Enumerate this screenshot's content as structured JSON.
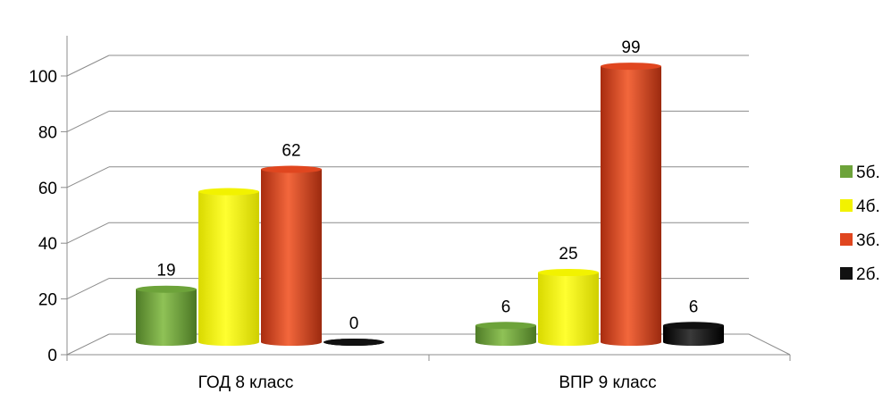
{
  "chart_data": {
    "type": "bar",
    "categories": [
      "ГОД 8 класс",
      "ВПР 9 класс"
    ],
    "series": [
      {
        "name": "5б.",
        "values": [
          19,
          6
        ],
        "labels": [
          "19",
          "6"
        ],
        "color": "#6da33a"
      },
      {
        "name": "4б.",
        "values": [
          54,
          25
        ],
        "labels": [
          "",
          "25"
        ],
        "color": "#f2f200"
      },
      {
        "name": "3б.",
        "values": [
          62,
          99
        ],
        "labels": [
          "62",
          "99"
        ],
        "color": "#e0461f"
      },
      {
        "name": "2б.",
        "values": [
          0,
          6
        ],
        "labels": [
          "0",
          "6"
        ],
        "color": "#111111"
      }
    ],
    "y_ticks": [
      "0",
      "20",
      "40",
      "60",
      "80",
      "100"
    ],
    "ylim": [
      0,
      100
    ],
    "grid": true,
    "legend_position": "right",
    "style": "3d-cylinder"
  }
}
